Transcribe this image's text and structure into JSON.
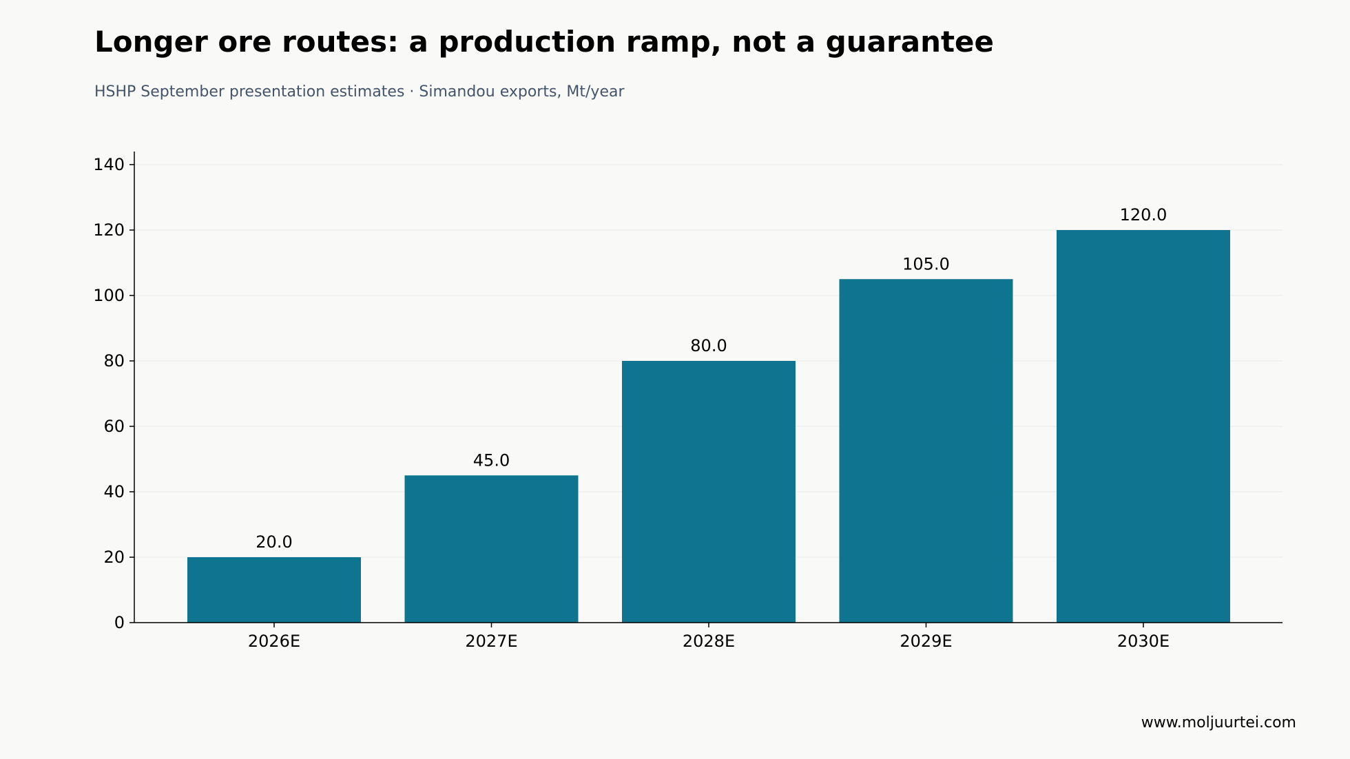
{
  "header": {
    "title": "Longer ore routes: a production ramp, not a guarantee",
    "subtitle": "HSHP September presentation estimates · Simandou exports, Mt/year"
  },
  "footer": {
    "watermark": "www.moljuurtei.com"
  },
  "colors": {
    "bar": "#0f7490",
    "axis": "#000000",
    "grid": "#ececea",
    "background": "#f9f9f7"
  },
  "chart_data": {
    "type": "bar",
    "title": "Longer ore routes: a production ramp, not a guarantee",
    "subtitle": "HSHP September presentation estimates · Simandou exports, Mt/year",
    "xlabel": "",
    "ylabel": "",
    "categories": [
      "2026E",
      "2027E",
      "2028E",
      "2029E",
      "2030E"
    ],
    "values": [
      20.0,
      45.0,
      80.0,
      105.0,
      120.0
    ],
    "value_labels": [
      "20.0",
      "45.0",
      "80.0",
      "105.0",
      "120.0"
    ],
    "ylim": [
      0,
      144
    ],
    "yticks": [
      0,
      20,
      40,
      60,
      80,
      100,
      120,
      140
    ],
    "grid": true,
    "legend": "none"
  }
}
